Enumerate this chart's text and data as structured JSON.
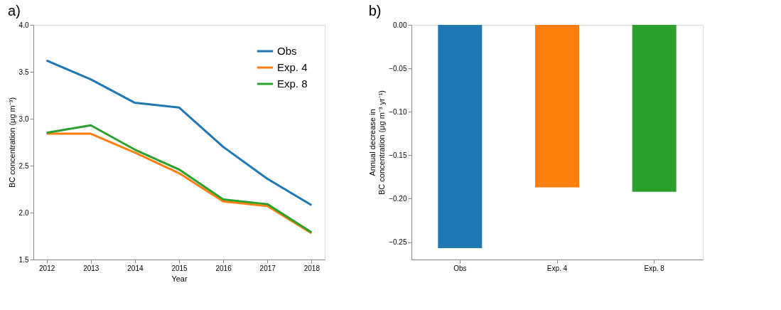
{
  "chart_data": [
    {
      "type": "line",
      "title": "a)",
      "xlabel": "Year",
      "ylabel": "BC concentration (μg m⁻³)",
      "x": [
        2012,
        2013,
        2014,
        2015,
        2016,
        2017,
        2018
      ],
      "xlim": [
        2011.7,
        2018.3
      ],
      "xticks": [
        2012,
        2013,
        2014,
        2015,
        2016,
        2017,
        2018
      ],
      "ylim": [
        1.5,
        4.0
      ],
      "yticks": [
        1.5,
        {
          "value": 2,
          "label": "2.0"
        },
        2.5,
        {
          "value": 3,
          "label": "3.0"
        },
        3.5,
        {
          "value": 4,
          "label": "4.0"
        }
      ],
      "legend": "top right",
      "grid": false,
      "series": [
        {
          "name": "Obs",
          "color": "#1f77b4",
          "values": [
            3.62,
            3.42,
            3.17,
            3.12,
            2.7,
            2.36,
            2.08
          ]
        },
        {
          "name": "Exp. 4",
          "color": "#ff7f0e",
          "values": [
            2.84,
            2.84,
            2.64,
            2.42,
            2.12,
            2.07,
            1.78
          ]
        },
        {
          "name": "Exp. 8",
          "color": "#2ca02c",
          "values": [
            2.85,
            2.93,
            2.67,
            2.46,
            2.14,
            2.09,
            1.79
          ]
        }
      ]
    },
    {
      "type": "bar",
      "title": "b)",
      "ylabel": "Annual decrease in\nBC concentration (μg m⁻³ yr⁻¹)",
      "categories": [
        "Obs",
        "Exp. 4",
        "Exp. 8"
      ],
      "values": [
        -0.257,
        -0.187,
        -0.192
      ],
      "colors": [
        "#1f77b4",
        "#ff7f0e",
        "#2ca02c"
      ],
      "ylim": [
        -0.27,
        0.0
      ],
      "yticks": [
        {
          "value": -0.25,
          "label": "−0.25"
        },
        {
          "value": -0.2,
          "label": "−0.20"
        },
        {
          "value": -0.15,
          "label": "−0.15"
        },
        {
          "value": -0.1,
          "label": "−0.10"
        },
        {
          "value": -0.05,
          "label": "−0.05"
        },
        {
          "value": 0,
          "label": "0.00"
        }
      ],
      "grid": false
    }
  ]
}
